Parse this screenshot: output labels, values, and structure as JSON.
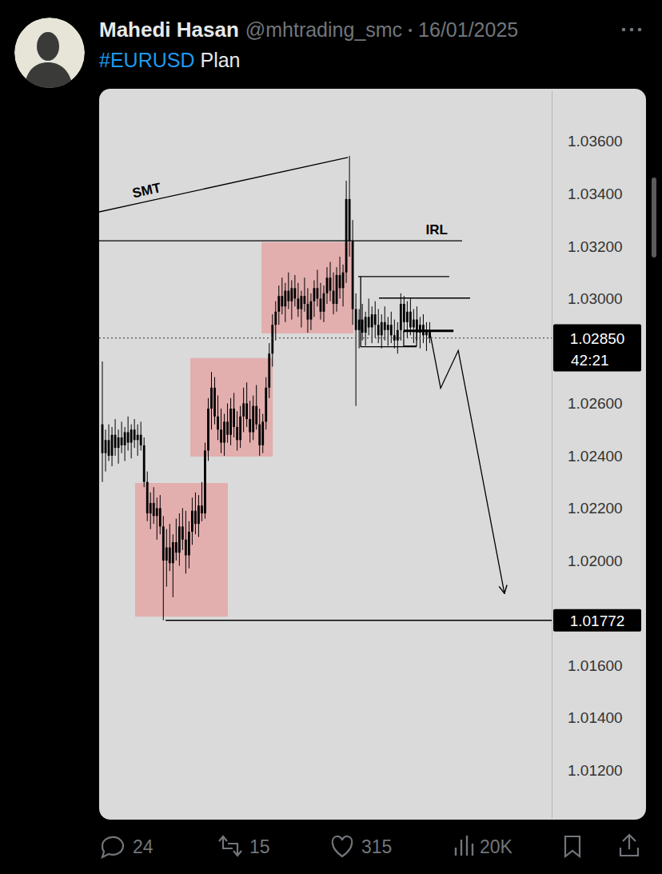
{
  "tweet": {
    "name": "Mahedi Hasan",
    "handle": "@mhtrading_smc",
    "date": "16/01/2025",
    "hashtag": "#EURUSD",
    "text": "Plan",
    "replies": 24,
    "reposts": 15,
    "likes": 315,
    "views": "20K"
  },
  "chart_data": {
    "type": "candlestick",
    "color": "#000000",
    "grid": false,
    "tick_labels": "y",
    "xlim": [
      -1,
      140
    ],
    "ylim": [
      1.01017,
      1.03795
    ],
    "yticks": [
      {
        "value": 1.012,
        "label": "1.01200"
      },
      {
        "value": 1.014,
        "label": "1.01400"
      },
      {
        "value": 1.016,
        "label": "1.01600"
      },
      {
        "value": 1.02,
        "label": "1.02000"
      },
      {
        "value": 1.022,
        "label": "1.02200"
      },
      {
        "value": 1.024,
        "label": "1.02400"
      },
      {
        "value": 1.026,
        "label": "1.02600"
      },
      {
        "value": 1.03,
        "label": "1.03000"
      },
      {
        "value": 1.032,
        "label": "1.03200"
      },
      {
        "value": 1.034,
        "label": "1.03400"
      },
      {
        "value": 1.036,
        "label": "1.03600"
      }
    ],
    "x": [
      0,
      1,
      2,
      3,
      4,
      5,
      6,
      7,
      8,
      9,
      10,
      11,
      12,
      13,
      14,
      15,
      16,
      17,
      18,
      19,
      20,
      21,
      22,
      23,
      24,
      25,
      26,
      27,
      28,
      29,
      30,
      31,
      32,
      33,
      34,
      35,
      36,
      37,
      38,
      39,
      40,
      41,
      42,
      43,
      44,
      45,
      46,
      47,
      48,
      49,
      50,
      51,
      52,
      53,
      54,
      55,
      56,
      57,
      58,
      59,
      60,
      61,
      62,
      63,
      64,
      65,
      66,
      67,
      68,
      69,
      70,
      71,
      72,
      73,
      74,
      75,
      76,
      77,
      78,
      79,
      80,
      81,
      82,
      83,
      84,
      85,
      86,
      87,
      88,
      89,
      90,
      91,
      92,
      93,
      94,
      95,
      96,
      97,
      98,
      99,
      100,
      101,
      102
    ],
    "values": [
      [
        1.0252,
        1.0276,
        1.023,
        1.0241
      ],
      [
        1.0241,
        1.025,
        1.0234,
        1.0246
      ],
      [
        1.0246,
        1.0252,
        1.0238,
        1.024
      ],
      [
        1.024,
        1.0251,
        1.0236,
        1.0248
      ],
      [
        1.0248,
        1.0254,
        1.024,
        1.0243
      ],
      [
        1.0243,
        1.025,
        1.0237,
        1.0247
      ],
      [
        1.0247,
        1.0253,
        1.0241,
        1.0244
      ],
      [
        1.0244,
        1.0251,
        1.0238,
        1.0249
      ],
      [
        1.0249,
        1.0255,
        1.0242,
        1.0245
      ],
      [
        1.0245,
        1.0252,
        1.0239,
        1.025
      ],
      [
        1.025,
        1.0254,
        1.0243,
        1.0246
      ],
      [
        1.0246,
        1.0252,
        1.024,
        1.0248
      ],
      [
        1.0248,
        1.0253,
        1.0242,
        1.0244
      ],
      [
        1.0244,
        1.0247,
        1.0228,
        1.023
      ],
      [
        1.023,
        1.0234,
        1.0215,
        1.0218
      ],
      [
        1.0218,
        1.0226,
        1.0212,
        1.0222
      ],
      [
        1.0222,
        1.0228,
        1.0214,
        1.0217
      ],
      [
        1.0217,
        1.0224,
        1.0208,
        1.022
      ],
      [
        1.022,
        1.0225,
        1.021,
        1.0213
      ],
      [
        1.0213,
        1.0217,
        1.01772,
        1.02
      ],
      [
        1.02,
        1.0212,
        1.019,
        1.0205
      ],
      [
        1.0205,
        1.0214,
        1.0196,
        1.0199
      ],
      [
        1.0199,
        1.021,
        1.0186,
        1.0207
      ],
      [
        1.0207,
        1.0216,
        1.02,
        1.0203
      ],
      [
        1.0203,
        1.0218,
        1.0198,
        1.0213
      ],
      [
        1.0213,
        1.022,
        1.0204,
        1.0208
      ],
      [
        1.0208,
        1.0219,
        1.0195,
        1.0202
      ],
      [
        1.0202,
        1.0215,
        1.0197,
        1.0211
      ],
      [
        1.0211,
        1.0224,
        1.0206,
        1.0219
      ],
      [
        1.0219,
        1.0226,
        1.021,
        1.0214
      ],
      [
        1.0214,
        1.0225,
        1.0209,
        1.0221
      ],
      [
        1.0221,
        1.023,
        1.0215,
        1.0218
      ],
      [
        1.0218,
        1.0245,
        1.0216,
        1.0242
      ],
      [
        1.0242,
        1.0262,
        1.0238,
        1.0258
      ],
      [
        1.0258,
        1.0272,
        1.025,
        1.0266
      ],
      [
        1.0266,
        1.027,
        1.0252,
        1.0255
      ],
      [
        1.0255,
        1.0263,
        1.0246,
        1.025
      ],
      [
        1.025,
        1.0258,
        1.0241,
        1.0245
      ],
      [
        1.0245,
        1.0256,
        1.024,
        1.0253
      ],
      [
        1.0253,
        1.026,
        1.0245,
        1.0248
      ],
      [
        1.0248,
        1.0262,
        1.0244,
        1.0258
      ],
      [
        1.0258,
        1.0264,
        1.0247,
        1.0251
      ],
      [
        1.0251,
        1.0257,
        1.0242,
        1.0246
      ],
      [
        1.0246,
        1.0259,
        1.0243,
        1.0255
      ],
      [
        1.0255,
        1.0266,
        1.0249,
        1.026
      ],
      [
        1.026,
        1.0268,
        1.0251,
        1.0254
      ],
      [
        1.0254,
        1.0261,
        1.0245,
        1.0249
      ],
      [
        1.0249,
        1.0263,
        1.0246,
        1.0259
      ],
      [
        1.0259,
        1.0267,
        1.025,
        1.0252
      ],
      [
        1.0252,
        1.0258,
        1.024,
        1.0244
      ],
      [
        1.0244,
        1.0256,
        1.0241,
        1.0253
      ],
      [
        1.0253,
        1.027,
        1.025,
        1.0266
      ],
      [
        1.0266,
        1.0283,
        1.0262,
        1.0279
      ],
      [
        1.0279,
        1.0294,
        1.0274,
        1.029
      ],
      [
        1.029,
        1.0299,
        1.0284,
        1.0295
      ],
      [
        1.0295,
        1.0305,
        1.029,
        1.0301
      ],
      [
        1.0301,
        1.0308,
        1.0294,
        1.0297
      ],
      [
        1.0297,
        1.0306,
        1.0291,
        1.0303
      ],
      [
        1.0303,
        1.031,
        1.0296,
        1.0299
      ],
      [
        1.0299,
        1.0307,
        1.0292,
        1.0304
      ],
      [
        1.0304,
        1.0309,
        1.0297,
        1.03
      ],
      [
        1.03,
        1.0306,
        1.0293,
        1.0296
      ],
      [
        1.0296,
        1.0303,
        1.0289,
        1.0301
      ],
      [
        1.0301,
        1.0308,
        1.0295,
        1.0298
      ],
      [
        1.0298,
        1.0304,
        1.0287,
        1.0292
      ],
      [
        1.0292,
        1.0302,
        1.0288,
        1.0299
      ],
      [
        1.0299,
        1.0307,
        1.0293,
        1.0304
      ],
      [
        1.0304,
        1.0311,
        1.0297,
        1.03
      ],
      [
        1.03,
        1.0306,
        1.0292,
        1.0295
      ],
      [
        1.0295,
        1.0305,
        1.0291,
        1.0302
      ],
      [
        1.0302,
        1.0312,
        1.0298,
        1.0308
      ],
      [
        1.0308,
        1.0314,
        1.0299,
        1.0303
      ],
      [
        1.0303,
        1.031,
        1.0294,
        1.0298
      ],
      [
        1.0298,
        1.0312,
        1.0295,
        1.0309
      ],
      [
        1.0309,
        1.0316,
        1.03,
        1.0304
      ],
      [
        1.0304,
        1.0313,
        1.0297,
        1.031
      ],
      [
        1.031,
        1.0345,
        1.0306,
        1.0338
      ],
      [
        1.0338,
        1.03545,
        1.0316,
        1.0322
      ],
      [
        1.0322,
        1.033,
        1.029,
        1.0296
      ],
      [
        1.0296,
        1.0302,
        1.0259,
        1.0288
      ],
      [
        1.0288,
        1.0296,
        1.0281,
        1.0292
      ],
      [
        1.0292,
        1.0298,
        1.0284,
        1.0287
      ],
      [
        1.0287,
        1.0295,
        1.0282,
        1.0293
      ],
      [
        1.0293,
        1.03,
        1.0286,
        1.0289
      ],
      [
        1.0289,
        1.0297,
        1.0283,
        1.0294
      ],
      [
        1.0294,
        1.0299,
        1.0285,
        1.029
      ],
      [
        1.029,
        1.0296,
        1.0283,
        1.0286
      ],
      [
        1.0286,
        1.0294,
        1.0281,
        1.0291
      ],
      [
        1.0291,
        1.0297,
        1.0284,
        1.0288
      ],
      [
        1.0288,
        1.0293,
        1.0282,
        1.029
      ],
      [
        1.029,
        1.0295,
        1.0283,
        1.0286
      ],
      [
        1.0286,
        1.0292,
        1.0281,
        1.0284
      ],
      [
        1.0284,
        1.0291,
        1.0279,
        1.0288
      ],
      [
        1.0288,
        1.0302,
        1.0284,
        1.0298
      ],
      [
        1.0298,
        1.0301,
        1.0287,
        1.0291
      ],
      [
        1.0291,
        1.0299,
        1.0285,
        1.0295
      ],
      [
        1.0295,
        1.03,
        1.0286,
        1.0289
      ],
      [
        1.0289,
        1.0296,
        1.0283,
        1.0292
      ],
      [
        1.0292,
        1.0297,
        1.0284,
        1.0287
      ],
      [
        1.0287,
        1.0293,
        1.0281,
        1.029
      ],
      [
        1.029,
        1.0294,
        1.0283,
        1.0286
      ],
      [
        1.0286,
        1.0291,
        1.028,
        1.0288
      ],
      [
        1.0288,
        1.0291,
        1.0283,
        1.0285
      ]
    ],
    "annotations": [
      {
        "type": "box",
        "color": "#e6a2a2",
        "x": [
          10.2,
          39.1
        ],
        "y": [
          1.01786,
          1.02296
        ]
      },
      {
        "type": "box",
        "color": "#e6a2a2",
        "x": [
          27.4,
          53.1
        ],
        "y": [
          1.02397,
          1.02773
        ]
      },
      {
        "type": "box",
        "color": "#e6a2a2",
        "x": [
          49.6,
          78.2
        ],
        "y": [
          1.02867,
          1.03215
        ]
      },
      {
        "type": "line",
        "label": "SMT",
        "x": [
          -1,
          76.5
        ],
        "y": [
          1.03331,
          1.03539
        ]
      },
      {
        "type": "line",
        "label": "IRL",
        "x": [
          -1,
          112.1
        ],
        "y": [
          1.03221,
          1.03221
        ]
      },
      {
        "type": "line",
        "x": [
          79.7,
          108.1
        ],
        "y": [
          1.03084,
          1.03084
        ]
      },
      {
        "type": "line",
        "x": [
          86.2,
          114.6
        ],
        "y": [
          1.03002,
          1.03002
        ]
      },
      {
        "type": "line",
        "x": [
          80.5,
          80.5,
          97.9
        ],
        "y": [
          1.03084,
          1.02816,
          1.02816
        ]
      },
      {
        "type": "frame",
        "x": [
          93.9,
          97.9
        ],
        "y": [
          1.02819,
          1.02877
        ]
      },
      {
        "type": "line",
        "line_style": "thick",
        "x": [
          93.9,
          109.4
        ],
        "y": [
          1.02877,
          1.02877
        ]
      },
      {
        "type": "arrow",
        "x": [
          101.9,
          105.4,
          110.9,
          125.3
        ],
        "y": [
          1.02881,
          1.02658,
          1.02802,
          1.01874
        ]
      }
    ],
    "price_levels": [
      {
        "value": 1.01772,
        "label": "1.01772",
        "x": [
          19.7,
          140
        ],
        "line_style": "solid"
      },
      {
        "value": 1.0285,
        "label": "1.02850",
        "countdown": "42:21",
        "x": [
          -1,
          140
        ],
        "line_style": "dotted"
      }
    ]
  }
}
